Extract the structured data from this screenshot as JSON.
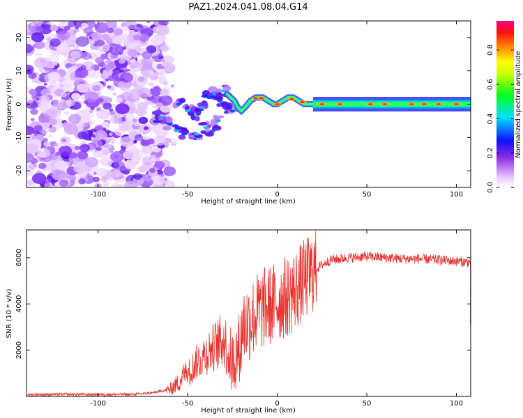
{
  "title": "PAZ1.2024.041.08.04.G14",
  "chart_data": [
    {
      "type": "heatmap",
      "xlabel": "Height of straight line (km)",
      "ylabel": "Frequency (Hz)",
      "xlim": [
        -140,
        108
      ],
      "ylim": [
        -25,
        25
      ],
      "xticks": [
        -100,
        -50,
        0,
        50,
        100
      ],
      "yticks": [
        -20,
        -10,
        0,
        10,
        20
      ],
      "colorbar": {
        "label": "Normalized spectral amplitude",
        "range": [
          0,
          0.97
        ],
        "ticks": [
          0.0,
          0.2,
          0.4,
          0.6,
          0.8
        ],
        "tick_labels": [
          "0.0",
          "0.2",
          "0.4",
          "0.6",
          "0.8"
        ],
        "colormap": "white-purple-blue-cyan-green-yellow-orange-red-pink"
      },
      "description_values": {
        "noise_region_km": [
          -140,
          -60
        ],
        "transition_region_km": [
          -60,
          -20
        ],
        "signal_line_frequency_hz": 0,
        "signal_line_start_km": -20
      }
    },
    {
      "type": "line",
      "xlabel": "Height of straight line (km)",
      "ylabel": "SNR (10 * v/v)",
      "xlim": [
        -140,
        108
      ],
      "ylim": [
        0,
        7200
      ],
      "xticks": [
        -100,
        -50,
        0,
        50,
        100
      ],
      "yticks": [
        2000,
        4000,
        6000
      ],
      "color": "#e8332e",
      "series": [
        {
          "x": [
            -140,
            -120,
            -100,
            -80,
            -70,
            -60,
            -55,
            -50,
            -45,
            -40,
            -35,
            -30,
            -25,
            -20,
            -15,
            -10,
            -5,
            0,
            5,
            10,
            15,
            20,
            25,
            30,
            40,
            50,
            60,
            70,
            80,
            90,
            100,
            108
          ],
          "y": [
            80,
            90,
            80,
            90,
            150,
            300,
            600,
            1200,
            1800,
            2200,
            2600,
            3000,
            2000,
            3000,
            3300,
            3700,
            3900,
            4100,
            4300,
            4600,
            5000,
            5400,
            5700,
            5900,
            6000,
            6050,
            6000,
            5950,
            5950,
            5900,
            5850,
            5800
          ]
        }
      ]
    }
  ]
}
